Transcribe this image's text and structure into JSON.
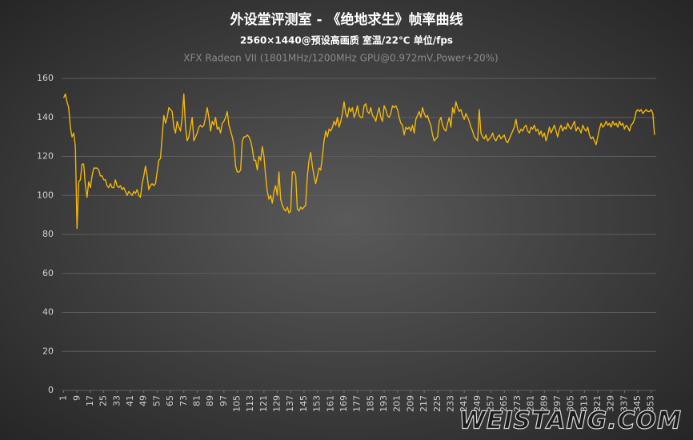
{
  "chart_data": {
    "type": "line",
    "title": "外设堂评测室 -  《绝地求生》帧率曲线",
    "subtitle": "2560×1440@预设高画质  室温/22℃  单位/fps",
    "caption": "XFX Radeon VII  (1801MHz/1200MHz  GPU@0.972mV,Power+20%)",
    "watermark": "WEISTANG.COM",
    "color": "#f2b705",
    "grid": true,
    "xlim": [
      0,
      356
    ],
    "ylim": [
      0,
      160
    ],
    "yticks": [
      0,
      20,
      40,
      60,
      80,
      100,
      120,
      140,
      160
    ],
    "xticks": [
      1,
      9,
      17,
      25,
      33,
      41,
      49,
      57,
      65,
      73,
      81,
      89,
      97,
      105,
      113,
      121,
      129,
      137,
      145,
      153,
      161,
      169,
      177,
      185,
      193,
      201,
      209,
      217,
      225,
      233,
      241,
      249,
      257,
      265,
      273,
      281,
      289,
      297,
      305,
      313,
      321,
      329,
      337,
      345,
      353
    ],
    "x": [
      1,
      2,
      3,
      4,
      5,
      6,
      7,
      8,
      9,
      10,
      11,
      12,
      13,
      14,
      15,
      16,
      17,
      18,
      19,
      20,
      21,
      22,
      23,
      24,
      25,
      26,
      27,
      28,
      29,
      30,
      31,
      32,
      33,
      34,
      35,
      36,
      37,
      38,
      39,
      40,
      41,
      42,
      43,
      44,
      45,
      46,
      47,
      48,
      49,
      50,
      51,
      52,
      53,
      54,
      55,
      56,
      57,
      58,
      59,
      60,
      61,
      62,
      63,
      64,
      65,
      66,
      67,
      68,
      69,
      70,
      71,
      72,
      73,
      74,
      75,
      76,
      77,
      78,
      79,
      80,
      81,
      82,
      83,
      84,
      85,
      86,
      87,
      88,
      89,
      90,
      91,
      92,
      93,
      94,
      95,
      96,
      97,
      98,
      99,
      100,
      101,
      102,
      103,
      104,
      105,
      106,
      107,
      108,
      109,
      110,
      111,
      112,
      113,
      114,
      115,
      116,
      117,
      118,
      119,
      120,
      121,
      122,
      123,
      124,
      125,
      126,
      127,
      128,
      129,
      130,
      131,
      132,
      133,
      134,
      135,
      136,
      137,
      138,
      139,
      140,
      141,
      142,
      143,
      144,
      145,
      146,
      147,
      148,
      149,
      150,
      151,
      152,
      153,
      154,
      155,
      156,
      157,
      158,
      159,
      160,
      161,
      162,
      163,
      164,
      165,
      166,
      167,
      168,
      169,
      170,
      171,
      172,
      173,
      174,
      175,
      176,
      177,
      178,
      179,
      180,
      181,
      182,
      183,
      184,
      185,
      186,
      187,
      188,
      189,
      190,
      191,
      192,
      193,
      194,
      195,
      196,
      197,
      198,
      199,
      200,
      201,
      202,
      203,
      204,
      205,
      206,
      207,
      208,
      209,
      210,
      211,
      212,
      213,
      214,
      215,
      216,
      217,
      218,
      219,
      220,
      221,
      222,
      223,
      224,
      225,
      226,
      227,
      228,
      229,
      230,
      231,
      232,
      233,
      234,
      235,
      236,
      237,
      238,
      239,
      240,
      241,
      242,
      243,
      244,
      245,
      246,
      247,
      248,
      249,
      250,
      251,
      252,
      253,
      254,
      255,
      256,
      257,
      258,
      259,
      260,
      261,
      262,
      263,
      264,
      265,
      266,
      267,
      268,
      269,
      270,
      271,
      272,
      273,
      274,
      275,
      276,
      277,
      278,
      279,
      280,
      281,
      282,
      283,
      284,
      285,
      286,
      287,
      288,
      289,
      290,
      291,
      292,
      293,
      294,
      295,
      296,
      297,
      298,
      299,
      300,
      301,
      302,
      303,
      304,
      305,
      306,
      307,
      308,
      309,
      310,
      311,
      312,
      313,
      314,
      315,
      316,
      317,
      318,
      319,
      320,
      321,
      322,
      323,
      324,
      325,
      326,
      327,
      328,
      329,
      330,
      331,
      332,
      333,
      334,
      335,
      336,
      337,
      338,
      339,
      340,
      341,
      342,
      343,
      344,
      345,
      346,
      347,
      348,
      349,
      350,
      351,
      352,
      353,
      354,
      355
    ],
    "values": [
      150,
      152,
      148,
      145,
      135,
      130,
      132,
      125,
      83,
      107,
      108,
      116,
      116,
      105,
      99,
      107,
      104,
      110,
      114,
      114,
      114,
      113,
      110,
      110,
      108,
      108,
      105,
      104,
      106,
      104,
      104,
      108,
      105,
      104,
      105,
      103,
      104,
      102,
      100,
      102,
      101,
      100,
      102,
      101,
      103,
      100,
      99,
      106,
      110,
      115,
      110,
      103,
      105,
      106,
      105,
      106,
      112,
      118,
      119,
      130,
      141,
      137,
      140,
      145,
      144,
      143,
      135,
      132,
      138,
      135,
      133,
      140,
      152,
      135,
      128,
      130,
      135,
      140,
      128,
      130,
      132,
      135,
      136,
      135,
      136,
      140,
      145,
      140,
      133,
      138,
      136,
      140,
      134,
      135,
      132,
      137,
      138,
      140,
      143,
      136,
      133,
      130,
      126,
      115,
      112,
      112,
      113,
      128,
      130,
      130,
      131,
      130,
      128,
      124,
      118,
      118,
      113,
      120,
      118,
      125,
      120,
      110,
      102,
      98,
      100,
      96,
      102,
      105,
      100,
      112,
      98,
      95,
      93,
      92,
      94,
      91,
      92,
      112,
      112,
      110,
      93,
      92,
      94,
      93,
      94,
      95,
      110,
      118,
      122,
      115,
      110,
      106,
      110,
      114,
      113,
      120,
      128,
      133,
      130,
      134,
      133,
      135,
      138,
      136,
      140,
      135,
      138,
      142,
      148,
      142,
      140,
      145,
      143,
      145,
      140,
      142,
      146,
      141,
      140,
      140,
      146,
      147,
      143,
      142,
      145,
      141,
      140,
      138,
      142,
      145,
      140,
      138,
      146,
      144,
      141,
      140,
      142,
      146,
      145,
      146,
      144,
      140,
      137,
      136,
      131,
      135,
      134,
      135,
      133,
      136,
      132,
      139,
      141,
      143,
      140,
      145,
      142,
      140,
      141,
      138,
      136,
      131,
      128,
      129,
      130,
      138,
      140,
      136,
      134,
      133,
      137,
      140,
      135,
      145,
      142,
      148,
      145,
      143,
      144,
      141,
      139,
      142,
      140,
      138,
      135,
      133,
      130,
      129,
      128,
      144,
      132,
      130,
      129,
      131,
      128,
      129,
      130,
      132,
      129,
      128,
      130,
      131,
      129,
      130,
      131,
      128,
      127,
      129,
      131,
      133,
      135,
      139,
      134,
      132,
      134,
      133,
      135,
      136,
      133,
      132,
      135,
      134,
      136,
      133,
      134,
      131,
      133,
      130,
      132,
      128,
      131,
      135,
      132,
      134,
      136,
      133,
      130,
      134,
      136,
      133,
      135,
      134,
      137,
      135,
      134,
      136,
      138,
      133,
      135,
      134,
      132,
      136,
      134,
      133,
      135,
      131,
      129,
      130,
      128,
      126,
      130,
      134,
      137,
      135,
      136,
      138,
      136,
      137,
      135,
      138,
      136,
      137,
      135,
      138,
      136,
      137,
      134,
      136,
      135,
      133,
      136,
      137,
      139,
      143,
      144,
      143,
      144,
      142,
      143,
      144,
      143,
      143,
      144,
      142,
      131
    ]
  }
}
